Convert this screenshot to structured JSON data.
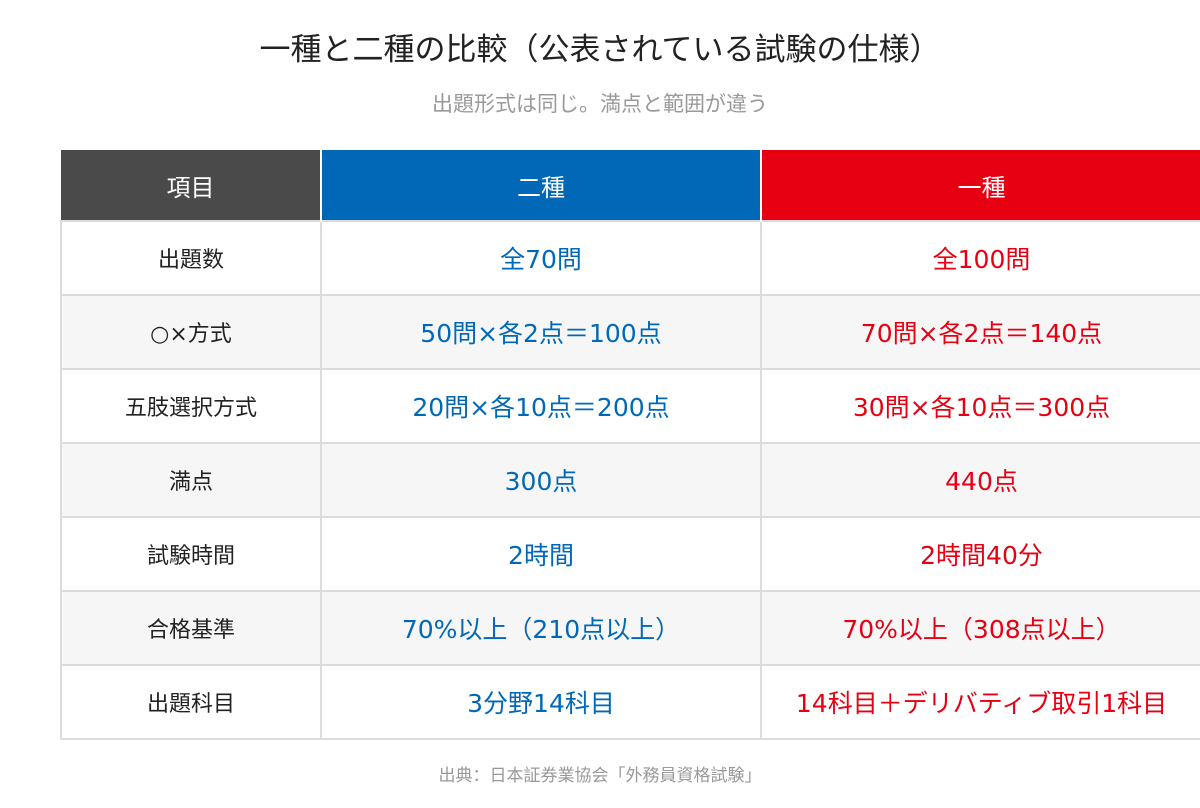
{
  "title": "一種と二種の比較（公表されている試験の仕様）",
  "subtitle": "出題形式は同じ。満点と範囲が違う",
  "table": {
    "headers": [
      "項目",
      "二種",
      "一種"
    ],
    "rows": [
      {
        "label": "出題数",
        "nishu": "全70問",
        "isshu": "全100問"
      },
      {
        "label": "○×方式",
        "nishu": "50問×各2点＝100点",
        "isshu": "70問×各2点＝140点"
      },
      {
        "label": "五肢選択方式",
        "nishu": "20問×各10点＝200点",
        "isshu": "30問×各10点＝300点"
      },
      {
        "label": "満点",
        "nishu": "300点",
        "isshu": "440点"
      },
      {
        "label": "試験時間",
        "nishu": "2時間",
        "isshu": "2時間40分"
      },
      {
        "label": "合格基準",
        "nishu": "70%以上（210点以上）",
        "isshu": "70%以上（308点以上）"
      },
      {
        "label": "出題科目",
        "nishu": "3分野14科目",
        "isshu": "14科目＋デリバティブ取引1科目"
      }
    ]
  },
  "source": "出典：日本証券業協会「外務員資格試験」",
  "colors": {
    "header_item": "#4a4a4a",
    "nishu": "#0068b7",
    "isshu": "#e60012"
  }
}
